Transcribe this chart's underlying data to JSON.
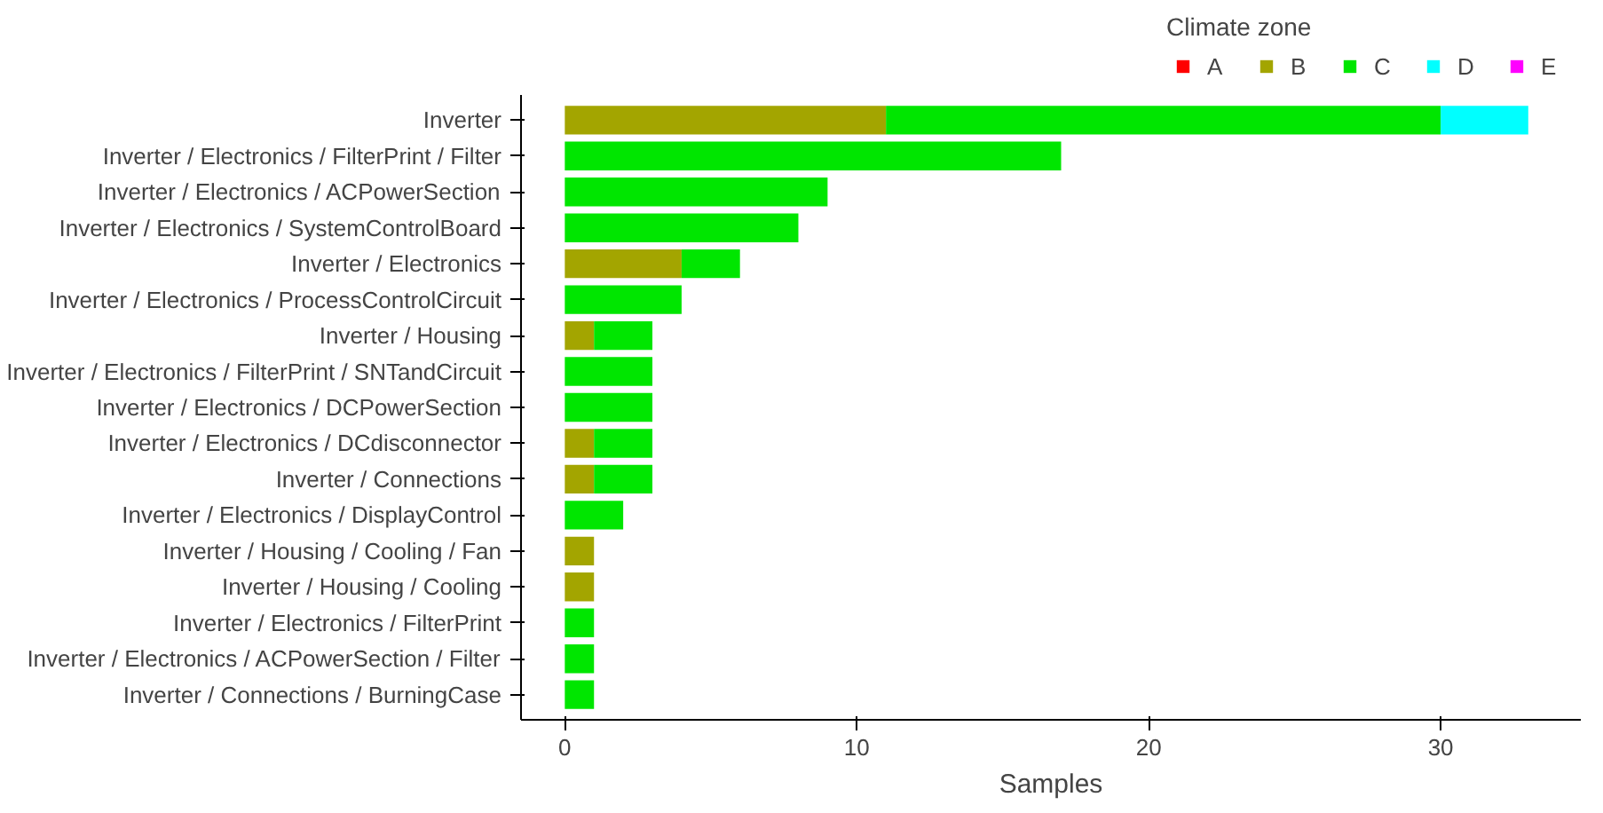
{
  "chart_data": {
    "type": "bar",
    "orientation": "horizontal",
    "stacked": true,
    "categories": [
      "Inverter",
      "Inverter / Electronics / FilterPrint / Filter",
      "Inverter / Electronics / ACPowerSection",
      "Inverter / Electronics / SystemControlBoard",
      "Inverter / Electronics",
      "Inverter / Electronics / ProcessControlCircuit",
      "Inverter / Housing",
      "Inverter / Electronics / FilterPrint / SNTandCircuit",
      "Inverter / Electronics / DCPowerSection",
      "Inverter / Electronics / DCdisconnector",
      "Inverter / Connections",
      "Inverter / Electronics / DisplayControl",
      "Inverter / Housing / Cooling / Fan",
      "Inverter / Housing / Cooling",
      "Inverter / Electronics / FilterPrint",
      "Inverter / Electronics / ACPowerSection / Filter",
      "Inverter / Connections / BurningCase"
    ],
    "series": [
      {
        "name": "A",
        "color": "#ff0000",
        "values": [
          null,
          null,
          null,
          null,
          null,
          null,
          null,
          null,
          null,
          null,
          null,
          null,
          null,
          null,
          null,
          null,
          null
        ]
      },
      {
        "name": "B",
        "color": "#a3a500",
        "values": [
          11,
          null,
          null,
          null,
          4,
          null,
          1,
          null,
          null,
          1,
          1,
          null,
          1,
          1,
          null,
          null,
          null
        ]
      },
      {
        "name": "C",
        "color": "#00e600",
        "values": [
          19,
          17,
          9,
          8,
          2,
          4,
          2,
          3,
          3,
          2,
          2,
          2,
          null,
          null,
          1,
          1,
          1
        ]
      },
      {
        "name": "D",
        "color": "#00ffff",
        "values": [
          3,
          null,
          null,
          null,
          null,
          null,
          null,
          null,
          null,
          null,
          null,
          null,
          null,
          null,
          null,
          null,
          null
        ]
      },
      {
        "name": "E",
        "color": "#ff00ff",
        "values": [
          null,
          null,
          null,
          null,
          null,
          null,
          null,
          null,
          null,
          null,
          null,
          null,
          null,
          null,
          null,
          null,
          null
        ]
      }
    ],
    "xlabel": "Samples",
    "legend_title": "Climate zone",
    "legend": "top",
    "xlim": [
      -1.5,
      34.8
    ],
    "xticks": [
      0,
      10,
      20,
      30
    ],
    "grid": false
  }
}
